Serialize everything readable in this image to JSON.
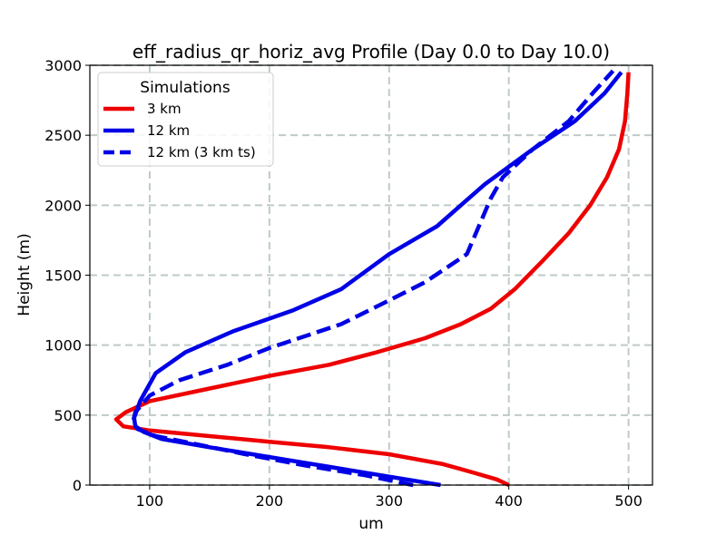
{
  "chart_data": {
    "type": "line",
    "title": "eff_radius_qr_horiz_avg Profile (Day 0.0 to Day 10.0)",
    "xlabel": "um",
    "ylabel": "Height (m)",
    "xlim": [
      50,
      520
    ],
    "ylim": [
      0,
      3000
    ],
    "xticks": [
      100,
      200,
      300,
      400,
      500
    ],
    "yticks": [
      0,
      500,
      1000,
      1500,
      2000,
      2500,
      3000
    ],
    "grid": true,
    "legend": {
      "title": "Simulations",
      "placement": "top-left"
    },
    "series": [
      {
        "name": "3 km",
        "color": "#ee0000",
        "style": "solid",
        "points": [
          [
            400,
            0
          ],
          [
            390,
            40
          ],
          [
            370,
            90
          ],
          [
            345,
            150
          ],
          [
            300,
            220
          ],
          [
            250,
            270
          ],
          [
            200,
            310
          ],
          [
            150,
            350
          ],
          [
            100,
            390
          ],
          [
            78,
            420
          ],
          [
            72,
            470
          ],
          [
            80,
            520
          ],
          [
            100,
            600
          ],
          [
            150,
            690
          ],
          [
            200,
            780
          ],
          [
            250,
            860
          ],
          [
            290,
            950
          ],
          [
            330,
            1050
          ],
          [
            360,
            1150
          ],
          [
            385,
            1260
          ],
          [
            405,
            1400
          ],
          [
            428,
            1600
          ],
          [
            450,
            1800
          ],
          [
            468,
            2000
          ],
          [
            482,
            2200
          ],
          [
            492,
            2400
          ],
          [
            497,
            2600
          ],
          [
            499,
            2800
          ],
          [
            500,
            2950
          ]
        ]
      },
      {
        "name": "12 km",
        "color": "#0000e6",
        "style": "solid",
        "points": [
          [
            343,
            0
          ],
          [
            300,
            60
          ],
          [
            250,
            130
          ],
          [
            200,
            200
          ],
          [
            150,
            270
          ],
          [
            110,
            330
          ],
          [
            95,
            380
          ],
          [
            88,
            420
          ],
          [
            87,
            480
          ],
          [
            92,
            600
          ],
          [
            105,
            800
          ],
          [
            130,
            950
          ],
          [
            170,
            1100
          ],
          [
            220,
            1250
          ],
          [
            260,
            1400
          ],
          [
            300,
            1650
          ],
          [
            340,
            1850
          ],
          [
            380,
            2150
          ],
          [
            420,
            2400
          ],
          [
            455,
            2600
          ],
          [
            480,
            2800
          ],
          [
            494,
            2950
          ]
        ]
      },
      {
        "name": "12 km (3 km ts)",
        "color": "#0000e6",
        "style": "dashed",
        "points": [
          [
            320,
            0
          ],
          [
            280,
            70
          ],
          [
            230,
            140
          ],
          [
            180,
            220
          ],
          [
            140,
            290
          ],
          [
            105,
            350
          ],
          [
            90,
            400
          ],
          [
            86,
            450
          ],
          [
            88,
            520
          ],
          [
            100,
            640
          ],
          [
            125,
            750
          ],
          [
            165,
            860
          ],
          [
            200,
            980
          ],
          [
            260,
            1150
          ],
          [
            300,
            1320
          ],
          [
            330,
            1450
          ],
          [
            365,
            1650
          ],
          [
            375,
            1850
          ],
          [
            385,
            2050
          ],
          [
            395,
            2200
          ],
          [
            420,
            2400
          ],
          [
            450,
            2600
          ],
          [
            470,
            2800
          ],
          [
            487,
            2960
          ]
        ]
      }
    ]
  }
}
